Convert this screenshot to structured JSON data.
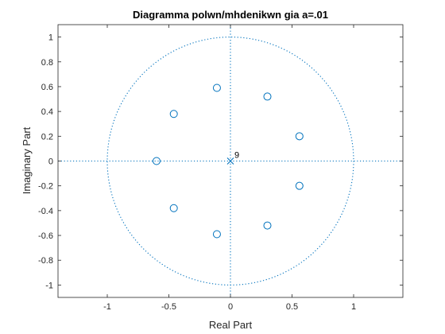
{
  "chart_data": {
    "type": "scatter",
    "title": "Diagramma polwn/mhdenikwn gia a=.01",
    "xlabel": "Real Part",
    "ylabel": "Imaginary Part",
    "xlim": [
      -1.4,
      1.4
    ],
    "ylim": [
      -1.1,
      1.1
    ],
    "xticks": [
      -1,
      -0.5,
      0,
      0.5,
      1
    ],
    "yticks": [
      -1,
      -0.8,
      -0.6,
      -0.4,
      -0.2,
      0,
      0.2,
      0.4,
      0.6,
      0.8,
      1
    ],
    "grid": false,
    "unit_circle": true,
    "zeros": [
      {
        "x": 0.3,
        "y": 0.52
      },
      {
        "x": 0.56,
        "y": 0.2
      },
      {
        "x": 0.56,
        "y": -0.2
      },
      {
        "x": 0.3,
        "y": -0.52
      },
      {
        "x": -0.11,
        "y": -0.59
      },
      {
        "x": -0.46,
        "y": -0.38
      },
      {
        "x": -0.6,
        "y": 0.0
      },
      {
        "x": -0.46,
        "y": 0.38
      },
      {
        "x": -0.11,
        "y": 0.59
      }
    ],
    "poles": [
      {
        "x": 0,
        "y": 0,
        "label": "9"
      }
    ],
    "color": "#0072bd"
  }
}
